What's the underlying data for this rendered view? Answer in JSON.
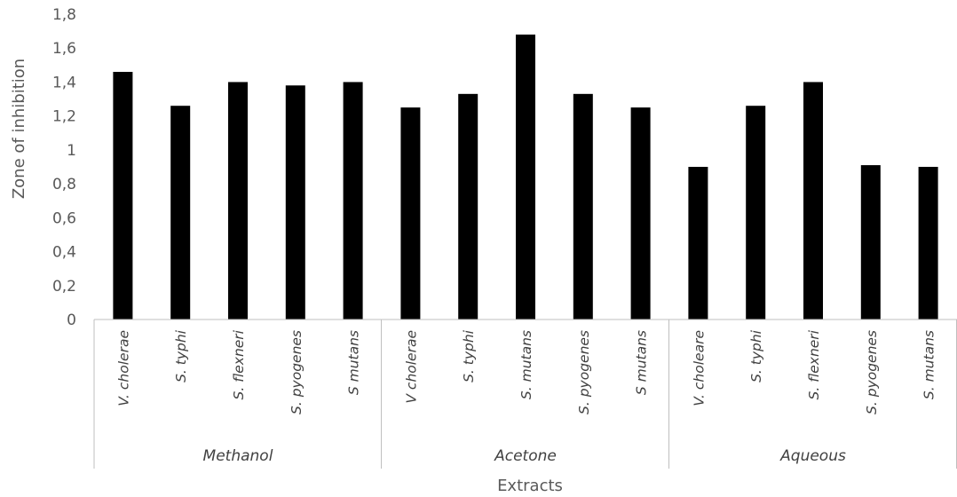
{
  "chart_data": {
    "type": "bar",
    "title": "",
    "xlabel": "Extracts",
    "ylabel": "Zone of inhibition",
    "ylim": [
      0,
      1.8
    ],
    "yticks": [
      "0",
      "0,2",
      "0,4",
      "0,6",
      "0,8",
      "1",
      "1,2",
      "1,4",
      "1,6",
      "1,8"
    ],
    "grid": false,
    "bar_color": "#000000",
    "groups": [
      {
        "name": "Methanol",
        "categories": [
          "V. cholerae",
          "S. typhi",
          "S. flexneri",
          "S. pyogenes",
          "S mutans"
        ],
        "values": [
          1.46,
          1.26,
          1.4,
          1.38,
          1.4
        ]
      },
      {
        "name": "Acetone",
        "categories": [
          "V cholerae",
          "S. typhi",
          "S. mutans",
          "S. pyogenes",
          "S mutans"
        ],
        "values": [
          1.25,
          1.33,
          1.68,
          1.33,
          1.25
        ]
      },
      {
        "name": "Aqueous",
        "categories": [
          "V. choleare",
          "S. typhi",
          "S. flexneri",
          "S. pyogenes",
          "S. mutans"
        ],
        "values": [
          0.9,
          1.26,
          1.4,
          0.91,
          0.9
        ]
      }
    ]
  }
}
